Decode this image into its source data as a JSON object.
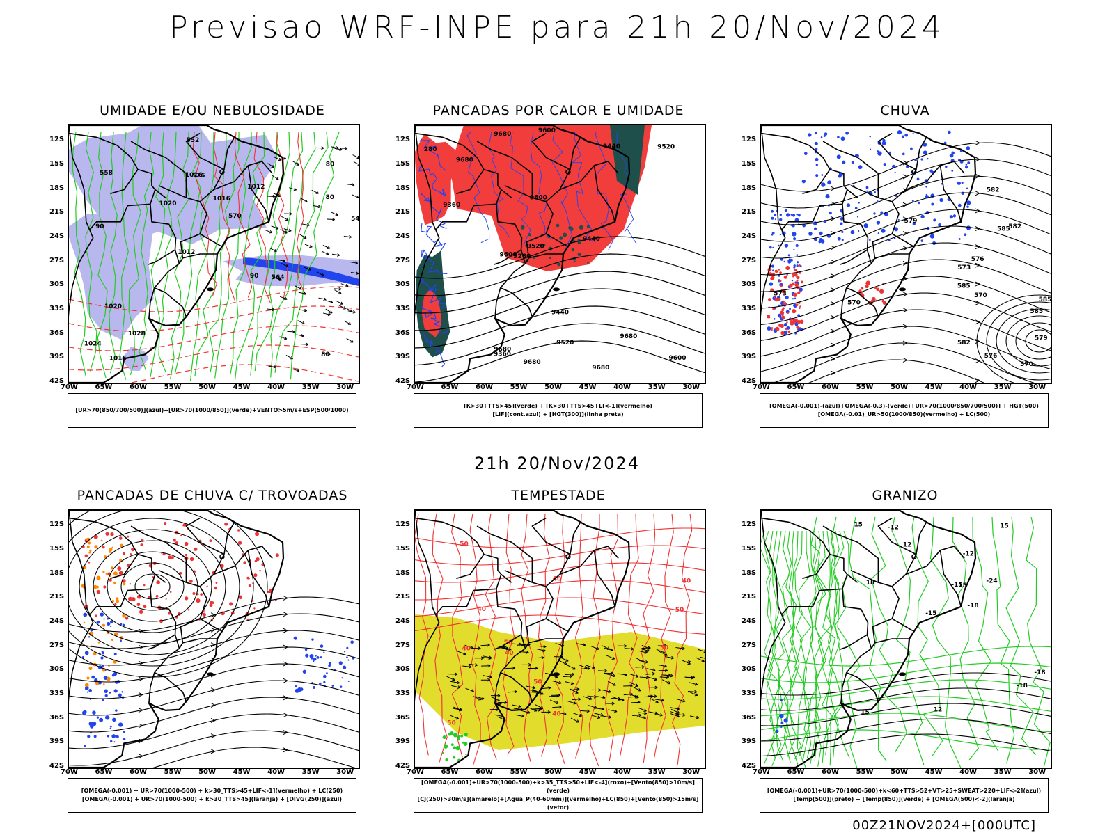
{
  "title": "Previsao WRF-INPE  para 21h 20/Nov/2024",
  "mid_title": "21h 20/Nov/2024",
  "footer": "00Z21NOV2024+[000UTC]",
  "lat_labels": [
    "12S",
    "15S",
    "18S",
    "21S",
    "24S",
    "27S",
    "30S",
    "33S",
    "36S",
    "39S",
    "42S"
  ],
  "lon_labels": [
    "70W",
    "65W",
    "60W",
    "55W",
    "50W",
    "45W",
    "40W",
    "35W",
    "30W"
  ],
  "colors": {
    "green": "#22cc22",
    "red": "#ee3333",
    "blue": "#2244ee",
    "lavender": "#b8b8ee",
    "darkteal": "#1f4f4a",
    "yellow": "#e2dc2c",
    "orange": "#ff8800",
    "redfill": "#f23d3d"
  },
  "panels": [
    {
      "title": "UMIDADE E/OU NEBULOSIDADE",
      "legend": [
        "[UR>70(850/700/500)](azul)+[UR>70(1000/850)](verde)+VENTO>5m/s+ESP(500/1000)"
      ],
      "contour_labels": [
        "80",
        "90",
        "80",
        "1012",
        "1012",
        "1016",
        "1016",
        "1016",
        "1020",
        "1020",
        "1024",
        "1028",
        "576",
        "570",
        "564",
        "558",
        "552",
        "546",
        "90",
        "80"
      ]
    },
    {
      "title": "PANCADAS POR CALOR E UMIDADE",
      "legend": [
        "[K>30+TTS>45](verde) + [K>30+TTS>45+LI<-1](vermelho)",
        "[LIF](cont.azul) + [HGT(300)](linha preta)"
      ],
      "contour_labels": [
        "9680",
        "9680",
        "9680",
        "9680",
        "9680",
        "9680",
        "9600",
        "9600",
        "9600",
        "9600",
        "9520",
        "9520",
        "9520",
        "9440",
        "9440",
        "9440",
        "9360",
        "9360",
        "9280",
        "280"
      ]
    },
    {
      "title": "CHUVA",
      "legend": [
        "[OMEGA(-0.001)-(azul)+OMEGA(-0.3)-(verde)+UR>70(1000/850/700/500)] + HGT(500)",
        "[OMEGA(-0.01)_UR>50(1000/850)(vermelho) + LC(500)"
      ],
      "contour_labels": [
        "585",
        "585",
        "585",
        "585",
        "582",
        "582",
        "582",
        "579",
        "579",
        "576",
        "576",
        "573",
        "573",
        "570",
        "570",
        "570"
      ]
    },
    {
      "title": "PANCADAS DE CHUVA C/ TROVOADAS",
      "legend": [
        "[OMEGA(-0.001) + UR>70(1000-500) + k>30_TTS>45+LIF<-1](vermelho) + LC(250)",
        "[OMEGA(-0.001) + UR>70(1000-500) + k>30_TTS>45](laranja) + [DIVG(250)](azul)"
      ],
      "contour_labels": []
    },
    {
      "title": "TEMPESTADE",
      "legend": [
        "[OMEGA(-0.001)+UR>70(1000-500)+k>35_TTS>50+LIF<-4](roxo)+[Vento(850)>10m/s](verde)",
        "[CJ(250)>30m/s](amarelo)+[Agua_P(40-60mm)](vermelho)+LC(850)+[Vento(850)>15m/s](vetor)"
      ],
      "contour_labels": [
        "50",
        "40",
        "50",
        "40",
        "40",
        "50",
        "40",
        "50",
        "40",
        "50",
        "40",
        "50"
      ]
    },
    {
      "title": "GRANIZO",
      "legend": [
        "[OMEGA(-0.001)+UR>70(1000-500)+k<60+TTS>52+VT>25+SWEAT>220+LIF<-2](azul)",
        "[Temp(500)](preto) + [Temp(850)](verde) + [OMEGA(500)<-2](laranja)"
      ],
      "contour_labels": [
        "-18",
        "-15",
        "-12",
        "-12",
        "-15",
        "-18",
        "-24",
        "15",
        "12",
        "15",
        "18",
        "15",
        "12",
        "-18",
        "15"
      ]
    }
  ]
}
